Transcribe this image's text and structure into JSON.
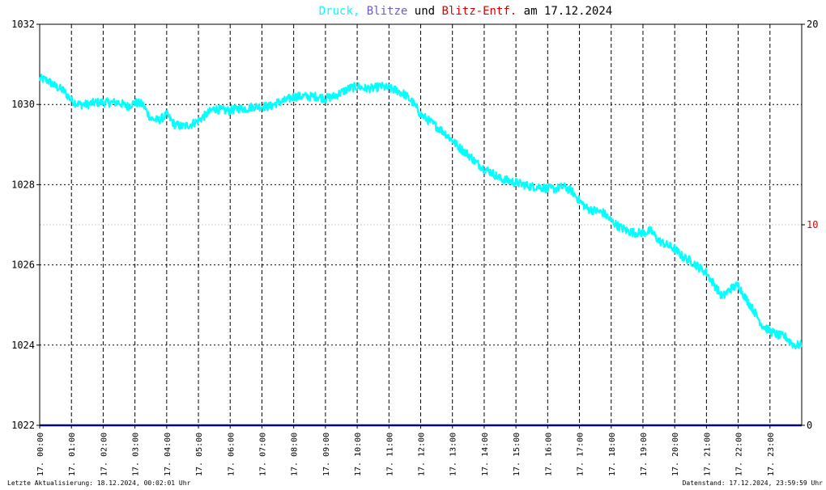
{
  "title": {
    "parts": [
      {
        "text": "Druck,",
        "color": "#00ffff"
      },
      {
        "text": "Blitze",
        "color": "#6a5acd"
      },
      {
        "text": "und",
        "color": "#000000"
      },
      {
        "text": "Blitz-Entf.",
        "color": "#e00000"
      },
      {
        "text": "am 17.12.2024",
        "color": "#000000"
      }
    ]
  },
  "footer": {
    "left": "Letzte Aktualisierung: 18.12.2024, 00:02:01 Uhr",
    "right": "Datenstand: 17.12.2024, 23:59:59 Uhr"
  },
  "colors": {
    "pressure": "#00ffff",
    "lightning": "#000080",
    "right_axis_mid": "#e00000",
    "grid": "#000000",
    "mid_grid": "#c8c8c8"
  },
  "chart_data": {
    "type": "line",
    "title": "Druck, Blitze und Blitz-Entf. am 17.12.2024",
    "xlabel": "",
    "ylabel": "",
    "x_ticks": [
      "17. 00:00",
      "17. 01:00",
      "17. 02:00",
      "17. 03:00",
      "17. 04:00",
      "17. 05:00",
      "17. 06:00",
      "17. 07:00",
      "17. 08:00",
      "17. 09:00",
      "17. 10:00",
      "17. 11:00",
      "17. 12:00",
      "17. 13:00",
      "17. 14:00",
      "17. 15:00",
      "17. 16:00",
      "17. 17:00",
      "17. 18:00",
      "17. 19:00",
      "17. 20:00",
      "17. 21:00",
      "17. 22:00",
      "17. 23:00"
    ],
    "xlim": [
      0,
      24
    ],
    "ylim_left": [
      1022,
      1032
    ],
    "y_ticks_left": [
      "1022",
      "1024",
      "1026",
      "1028",
      "1030",
      "1032"
    ],
    "ylim_right": [
      0,
      20
    ],
    "y_ticks_right": [
      "0",
      "10",
      "20"
    ],
    "grid": true,
    "series": [
      {
        "name": "Druck",
        "axis": "left",
        "x": [
          0.0,
          0.25,
          0.5,
          0.75,
          1.0,
          1.25,
          1.5,
          1.75,
          2.0,
          2.25,
          2.5,
          2.75,
          3.0,
          3.25,
          3.5,
          3.75,
          4.0,
          4.25,
          4.5,
          4.75,
          5.0,
          5.25,
          5.5,
          5.75,
          6.0,
          6.25,
          6.5,
          6.75,
          7.0,
          7.25,
          7.5,
          7.75,
          8.0,
          8.25,
          8.5,
          8.75,
          9.0,
          9.25,
          9.5,
          9.75,
          10.0,
          10.25,
          10.5,
          10.75,
          11.0,
          11.25,
          11.5,
          11.75,
          12.0,
          12.25,
          12.5,
          12.75,
          13.0,
          13.25,
          13.5,
          13.75,
          14.0,
          14.25,
          14.5,
          14.75,
          15.0,
          15.25,
          15.5,
          15.75,
          16.0,
          16.25,
          16.5,
          16.75,
          17.0,
          17.25,
          17.5,
          17.75,
          18.0,
          18.25,
          18.5,
          18.75,
          19.0,
          19.25,
          19.5,
          19.75,
          20.0,
          20.25,
          20.5,
          20.75,
          21.0,
          21.25,
          21.5,
          21.75,
          22.0,
          22.25,
          22.5,
          22.75,
          23.0,
          23.25,
          23.5,
          23.75,
          24.0
        ],
        "values": [
          1030.65,
          1030.6,
          1030.45,
          1030.35,
          1030.1,
          1030.0,
          1030.0,
          1030.05,
          1030.05,
          1030.05,
          1030.05,
          1029.95,
          1030.05,
          1030.0,
          1029.65,
          1029.6,
          1029.75,
          1029.5,
          1029.45,
          1029.5,
          1029.6,
          1029.75,
          1029.9,
          1029.85,
          1029.85,
          1029.9,
          1029.9,
          1029.95,
          1029.95,
          1029.95,
          1030.05,
          1030.1,
          1030.2,
          1030.2,
          1030.2,
          1030.2,
          1030.15,
          1030.2,
          1030.3,
          1030.4,
          1030.45,
          1030.4,
          1030.4,
          1030.45,
          1030.4,
          1030.35,
          1030.25,
          1030.05,
          1029.75,
          1029.6,
          1029.45,
          1029.3,
          1029.1,
          1028.9,
          1028.75,
          1028.55,
          1028.4,
          1028.3,
          1028.15,
          1028.1,
          1028.05,
          1028.0,
          1027.95,
          1027.95,
          1027.9,
          1027.9,
          1027.95,
          1027.85,
          1027.6,
          1027.4,
          1027.35,
          1027.3,
          1027.1,
          1026.95,
          1026.85,
          1026.8,
          1026.8,
          1026.85,
          1026.6,
          1026.5,
          1026.4,
          1026.2,
          1026.1,
          1025.95,
          1025.8,
          1025.5,
          1025.2,
          1025.4,
          1025.5,
          1025.15,
          1024.85,
          1024.5,
          1024.35,
          1024.25,
          1024.2,
          1024.0,
          1024.0
        ]
      },
      {
        "name": "Blitze",
        "axis": "right",
        "x": [
          0,
          24
        ],
        "values": [
          0,
          0
        ]
      }
    ]
  }
}
